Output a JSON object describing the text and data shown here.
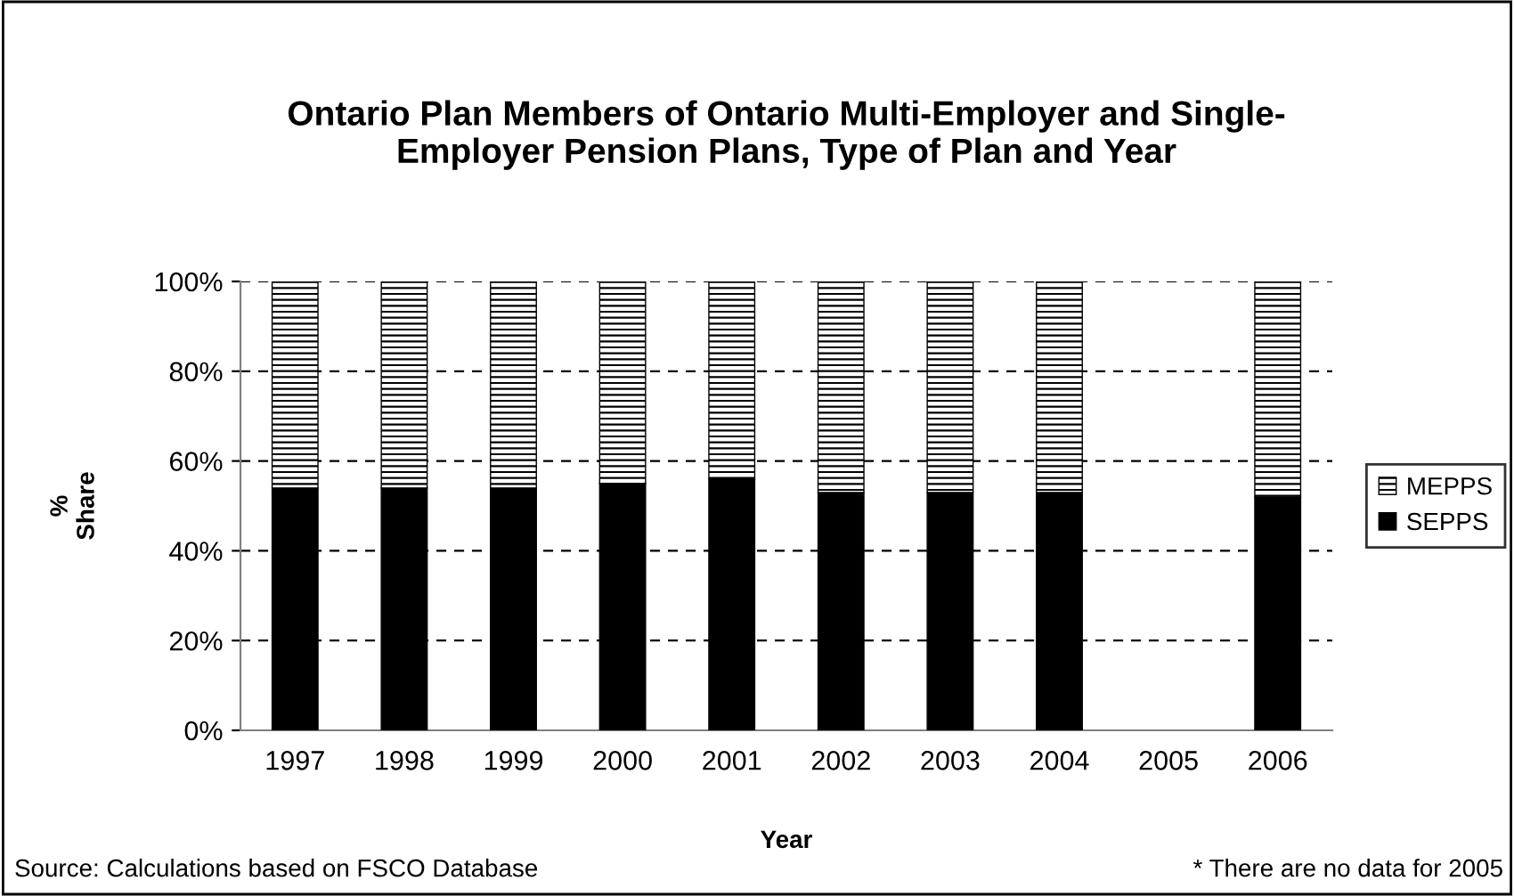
{
  "chart_data": {
    "type": "bar",
    "stacked": true,
    "title": "Ontario Plan Members of Ontario Multi-Employer and Single-\nEmployer Pension Plans, Type of Plan and Year",
    "xlabel": "Year",
    "ylabel": "%\nShare",
    "categories": [
      "1997",
      "1998",
      "1999",
      "2000",
      "2001",
      "2002",
      "2003",
      "2004",
      "2005",
      "2006"
    ],
    "series": [
      {
        "name": "SEPPS",
        "color": "#000000",
        "values": [
          54,
          54,
          54,
          55,
          56,
          53,
          53,
          53,
          null,
          52
        ]
      },
      {
        "name": "MEPPS",
        "color": "#000000",
        "values": [
          46,
          46,
          46,
          45,
          44,
          47,
          47,
          47,
          null,
          48
        ]
      }
    ],
    "ylim": [
      0,
      100
    ],
    "yticks": [
      {
        "value": 0,
        "label": "0%"
      },
      {
        "value": 20,
        "label": "20%"
      },
      {
        "value": 40,
        "label": "40%"
      },
      {
        "value": 60,
        "label": "60%"
      },
      {
        "value": 80,
        "label": "80%"
      },
      {
        "value": 100,
        "label": "100%"
      }
    ],
    "grid": "y",
    "legend": "right",
    "annotations": [
      "Source: Calculations based on FSCO Database",
      "* There are no data for 2005"
    ]
  }
}
